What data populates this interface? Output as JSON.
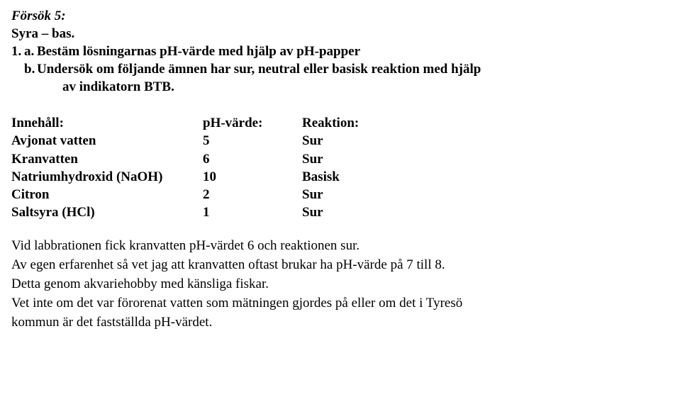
{
  "header": {
    "title_italic": "Försök 5:",
    "subtitle": "Syra – bas.",
    "item_number": "1.",
    "item_a_letter": "a.",
    "item_a_text": "Bestäm lösningarnas pH-värde med hjälp av pH-papper",
    "item_b_letter": "b.",
    "item_b_text_line1": "Undersök om följande ämnen har sur, neutral eller basisk reaktion med hjälp",
    "item_b_text_line2": "av indikatorn BTB."
  },
  "table": {
    "headers": {
      "name": "Innehåll:",
      "ph": "pH-värde:",
      "reaction": "Reaktion:"
    },
    "rows": [
      {
        "name": "Avjonat vatten",
        "ph": "5",
        "reaction": "Sur"
      },
      {
        "name": "Kranvatten",
        "ph": "6",
        "reaction": "Sur"
      },
      {
        "name": "Natriumhydroxid (NaOH)",
        "ph": "10",
        "reaction": "Basisk"
      },
      {
        "name": "Citron",
        "ph": "2",
        "reaction": "Sur"
      },
      {
        "name": "Saltsyra (HCl)",
        "ph": "1",
        "reaction": "Sur"
      }
    ]
  },
  "para": {
    "l1": "Vid labbrationen fick kranvatten pH-värdet 6 och reaktionen sur.",
    "l2": "Av egen erfarenhet så vet jag att kranvatten oftast brukar ha pH-värde på 7 till 8.",
    "l3": "Detta genom akvariehobby med känsliga fiskar.",
    "l4": "Vet inte om det var förorenat vatten som mätningen gjordes på eller om det i Tyresö",
    "l5": "kommun är det fastställda pH-värdet."
  }
}
